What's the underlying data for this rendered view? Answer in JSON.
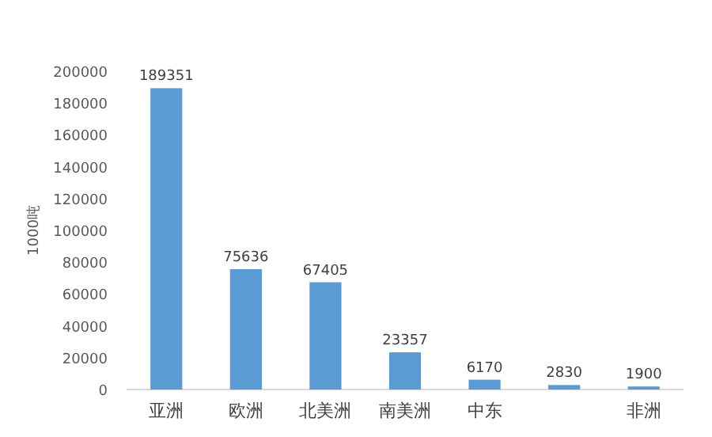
{
  "chart_data": {
    "type": "bar",
    "ylabel": "1000吨",
    "categories": [
      "亚洲",
      "欧洲",
      "北美洲",
      "南美洲",
      "中东",
      null,
      "非洲"
    ],
    "values": [
      189351,
      75636,
      67405,
      23357,
      6170,
      2830,
      1900
    ],
    "color": "#5b9bd5",
    "ylim": [
      0,
      200000
    ],
    "yticks": [
      0,
      20000,
      40000,
      60000,
      80000,
      100000,
      120000,
      140000,
      160000,
      180000,
      200000
    ],
    "data_labels": true,
    "grid": false
  }
}
